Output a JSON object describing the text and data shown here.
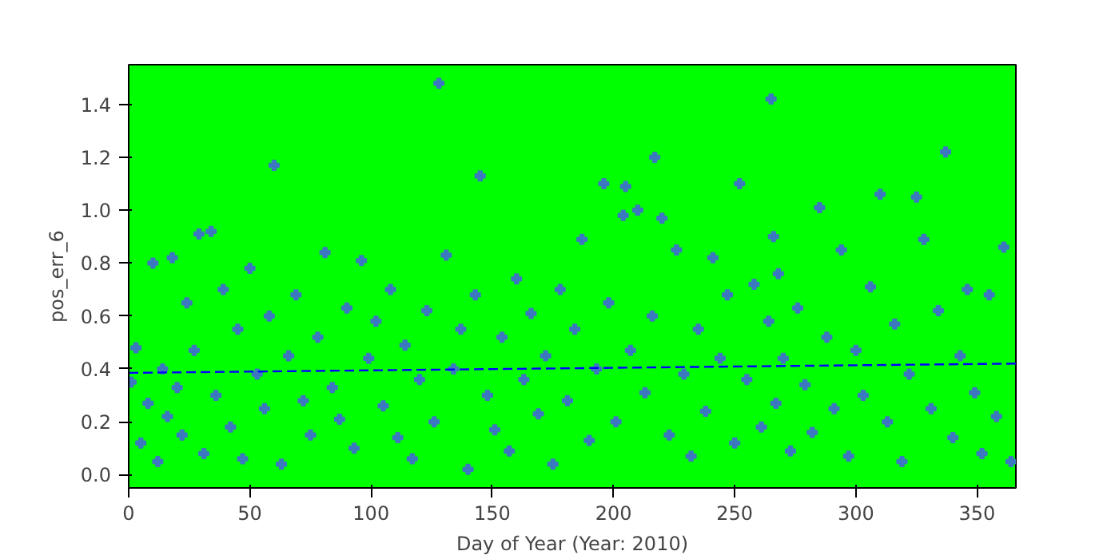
{
  "chart_data": {
    "type": "scatter",
    "xlabel": "Day of Year (Year: 2010)",
    "ylabel": "pos_err_6",
    "xlim": [
      0,
      366
    ],
    "ylim": [
      -0.05,
      1.55
    ],
    "xticks": [
      0,
      50,
      100,
      150,
      200,
      250,
      300,
      350
    ],
    "yticks": [
      {
        "value": 0,
        "label": "0.0"
      },
      {
        "value": 0.2,
        "label": "0.2"
      },
      {
        "value": 0.4,
        "label": "0.4"
      },
      {
        "value": 0.6,
        "label": "0.6"
      },
      {
        "value": 0.8,
        "label": "0.8"
      },
      {
        "value": 1.0,
        "label": "1.0"
      },
      {
        "value": 1.2,
        "label": "1.2"
      },
      {
        "value": 1.4,
        "label": "1.4"
      }
    ],
    "grid": false,
    "series": [
      {
        "marker": "cross",
        "color": "#3c78c0",
        "x": [
          1,
          3,
          5,
          8,
          10,
          12,
          14,
          16,
          18,
          20,
          22,
          24,
          27,
          29,
          31,
          34,
          36,
          39,
          42,
          45,
          47,
          50,
          53,
          56,
          58,
          60,
          63,
          66,
          69,
          72,
          75,
          78,
          81,
          84,
          87,
          90,
          93,
          96,
          99,
          102,
          105,
          108,
          111,
          114,
          117,
          120,
          123,
          126,
          128,
          131,
          134,
          137,
          140,
          143,
          145,
          148,
          151,
          154,
          157,
          160,
          163,
          166,
          169,
          172,
          175,
          178,
          181,
          184,
          187,
          190,
          193,
          196,
          198,
          201,
          204,
          205,
          207,
          210,
          213,
          216,
          217,
          220,
          223,
          226,
          229,
          232,
          235,
          238,
          241,
          244,
          247,
          250,
          252,
          255,
          258,
          261,
          264,
          265,
          266,
          267,
          268,
          270,
          273,
          276,
          279,
          282,
          285,
          288,
          291,
          294,
          297,
          300,
          303,
          306,
          310,
          313,
          316,
          319,
          322,
          325,
          328,
          331,
          334,
          337,
          340,
          343,
          346,
          349,
          352,
          355,
          358,
          361,
          364
        ],
        "values": [
          0.35,
          0.48,
          0.12,
          0.27,
          0.8,
          0.05,
          0.4,
          0.22,
          0.82,
          0.33,
          0.15,
          0.65,
          0.47,
          0.91,
          0.08,
          0.92,
          0.3,
          0.7,
          0.18,
          0.55,
          0.06,
          0.78,
          0.38,
          0.25,
          0.6,
          1.17,
          0.04,
          0.45,
          0.68,
          0.28,
          0.15,
          0.52,
          0.84,
          0.33,
          0.21,
          0.63,
          0.1,
          0.81,
          0.44,
          0.58,
          0.26,
          0.7,
          0.14,
          0.49,
          0.06,
          0.36,
          0.62,
          0.2,
          1.48,
          0.83,
          0.4,
          0.55,
          0.02,
          0.68,
          1.13,
          0.3,
          0.17,
          0.52,
          0.09,
          0.74,
          0.36,
          0.61,
          0.23,
          0.45,
          0.04,
          0.7,
          0.28,
          0.55,
          0.89,
          0.13,
          0.4,
          1.1,
          0.65,
          0.2,
          0.98,
          1.09,
          0.47,
          1.0,
          0.31,
          0.6,
          1.2,
          0.97,
          0.15,
          0.85,
          0.38,
          0.07,
          0.55,
          0.24,
          0.82,
          0.44,
          0.68,
          0.12,
          1.1,
          0.36,
          0.72,
          0.18,
          0.58,
          1.42,
          0.9,
          0.27,
          0.76,
          0.44,
          0.09,
          0.63,
          0.34,
          0.16,
          1.01,
          0.52,
          0.25,
          0.85,
          0.07,
          0.47,
          0.3,
          0.71,
          1.06,
          0.2,
          0.57,
          0.05,
          0.38,
          1.05,
          0.89,
          0.25,
          0.62,
          1.22,
          0.14,
          0.45,
          0.7,
          0.31,
          0.08,
          0.68,
          0.22,
          0.86,
          0.05
        ]
      },
      {
        "type": "line",
        "line_style": "dashed",
        "color": "#0000ff",
        "x": [
          0,
          366
        ],
        "values": [
          0.385,
          0.42
        ]
      }
    ]
  }
}
